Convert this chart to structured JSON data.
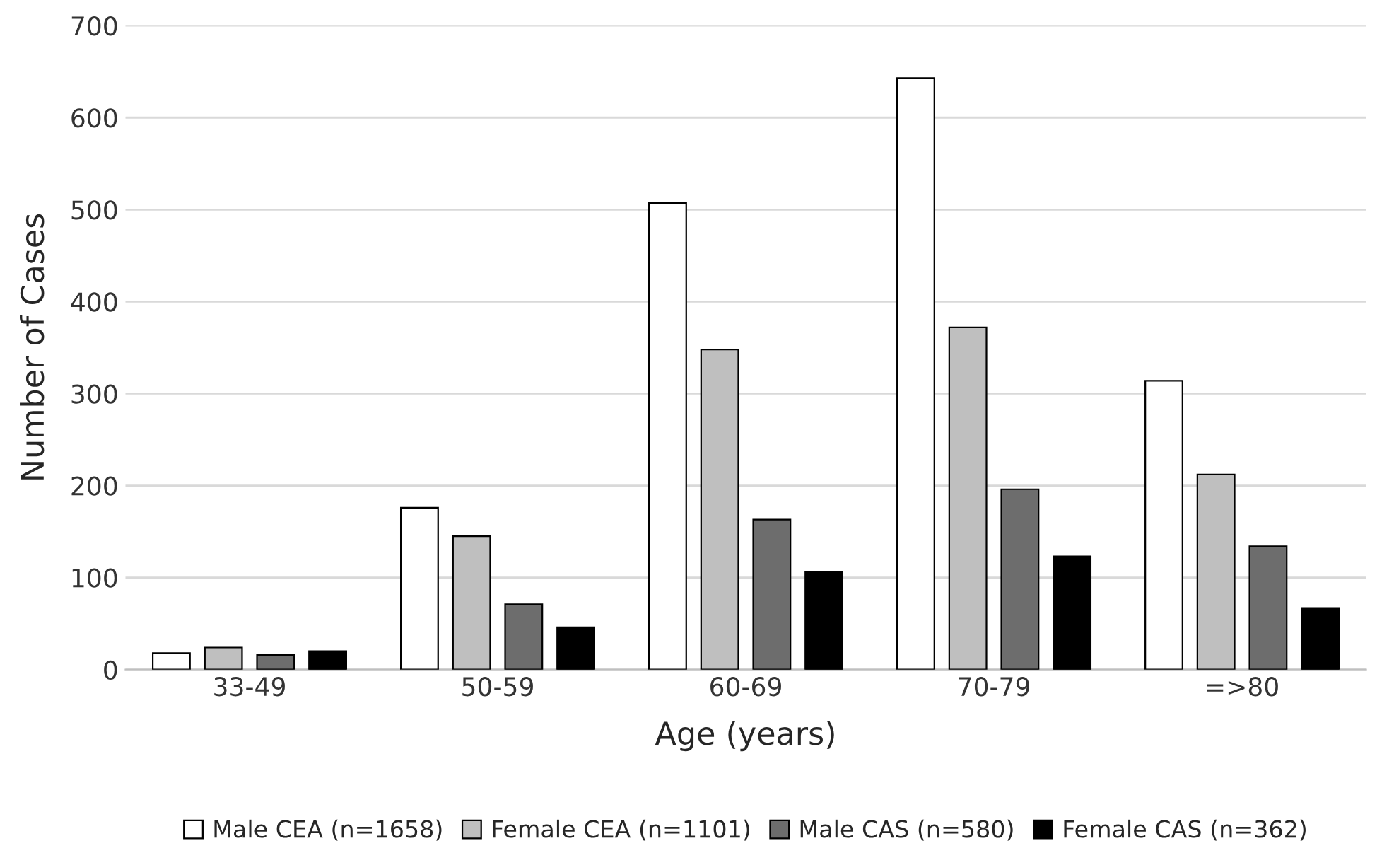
{
  "chart_data": {
    "type": "bar",
    "xlabel": "Age (years)",
    "ylabel": "Number of Cases",
    "categories": [
      "33-49",
      "50-59",
      "60-69",
      "70-79",
      "=>80"
    ],
    "series": [
      {
        "name": "Male CEA (n=1658)",
        "color": "#ffffff",
        "values": [
          18,
          176,
          507,
          643,
          314
        ]
      },
      {
        "name": "Female CEA (n=1101)",
        "color": "#bfbfbf",
        "values": [
          24,
          145,
          348,
          372,
          212
        ]
      },
      {
        "name": "Male CAS (n=580)",
        "color": "#6d6d6d",
        "values": [
          16,
          71,
          163,
          196,
          134
        ]
      },
      {
        "name": "Female CAS (n=362)",
        "color": "#000000",
        "values": [
          20,
          46,
          106,
          123,
          67
        ]
      }
    ],
    "ylim": [
      0,
      700
    ],
    "yticks": [
      0,
      100,
      200,
      300,
      400,
      500,
      600,
      700
    ],
    "grid": "y",
    "legend": "bottom"
  }
}
